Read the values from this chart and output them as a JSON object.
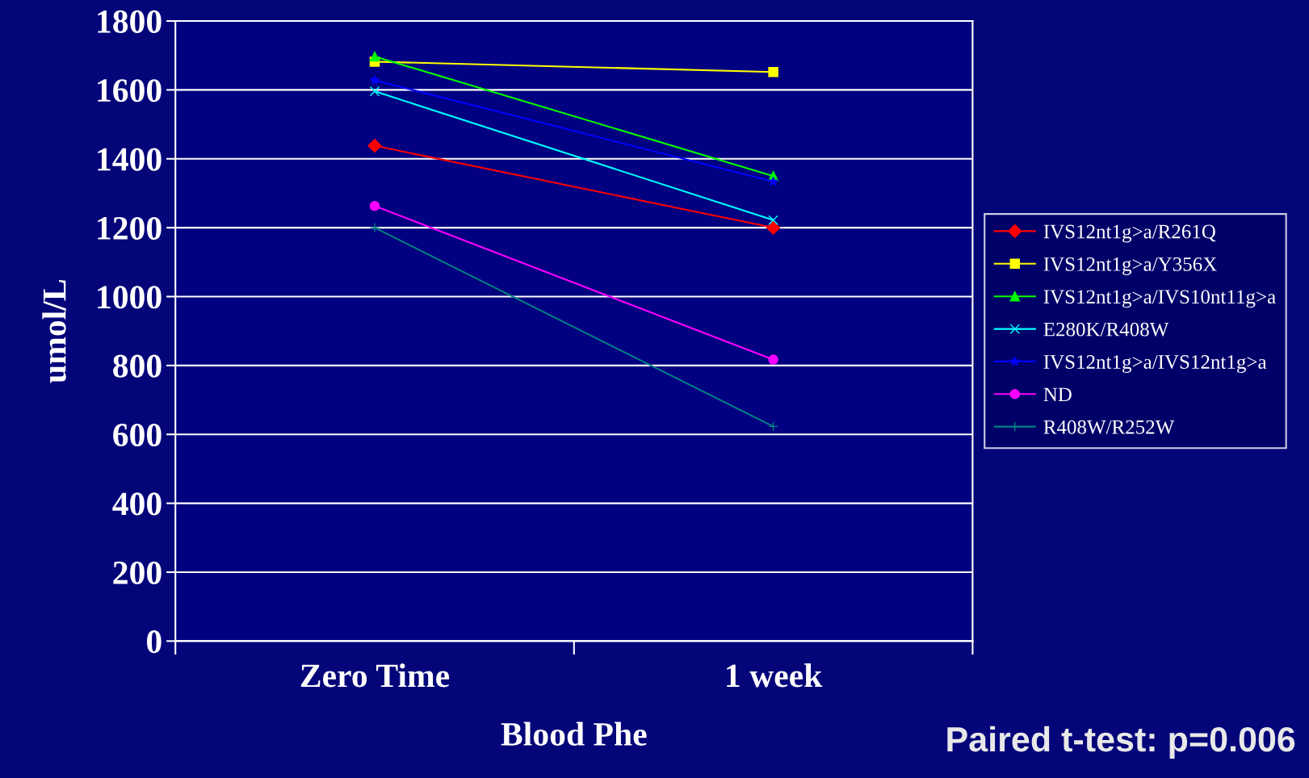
{
  "chart_data": {
    "type": "line",
    "xlabel": "Blood Phe",
    "ylabel": "umol/L",
    "categories": [
      "Zero Time",
      "1 week"
    ],
    "series": [
      {
        "name": "IVS12nt1g>a/R261Q",
        "color": "#ff0000",
        "marker": "diamond",
        "values": [
          1438,
          1200
        ]
      },
      {
        "name": "IVS12nt1g>a/Y356X",
        "color": "#ffff00",
        "marker": "square",
        "values": [
          1682,
          1652
        ]
      },
      {
        "name": "IVS12nt1g>a/IVS10nt11g>a",
        "color": "#00ff00",
        "marker": "triangle",
        "values": [
          1697,
          1350
        ]
      },
      {
        "name": "E280K/R408W",
        "color": "#00ffff",
        "marker": "cross",
        "values": [
          1596,
          1222
        ]
      },
      {
        "name": "IVS12nt1g>a/IVS12nt1g>a",
        "color": "#0000ff",
        "marker": "star",
        "values": [
          1628,
          1334
        ]
      },
      {
        "name": "ND",
        "color": "#ff00ff",
        "marker": "circle",
        "values": [
          1263,
          817
        ]
      },
      {
        "name": "R408W/R252W",
        "color": "#008080",
        "marker": "plus",
        "values": [
          1200,
          623
        ]
      }
    ],
    "ylim": [
      0,
      1800
    ],
    "yticks": [
      0,
      200,
      400,
      600,
      800,
      1000,
      1200,
      1400,
      1600,
      1800
    ],
    "grid": "y",
    "legend": "right",
    "annotations": [
      "Paired t-test: p=0.006"
    ]
  }
}
